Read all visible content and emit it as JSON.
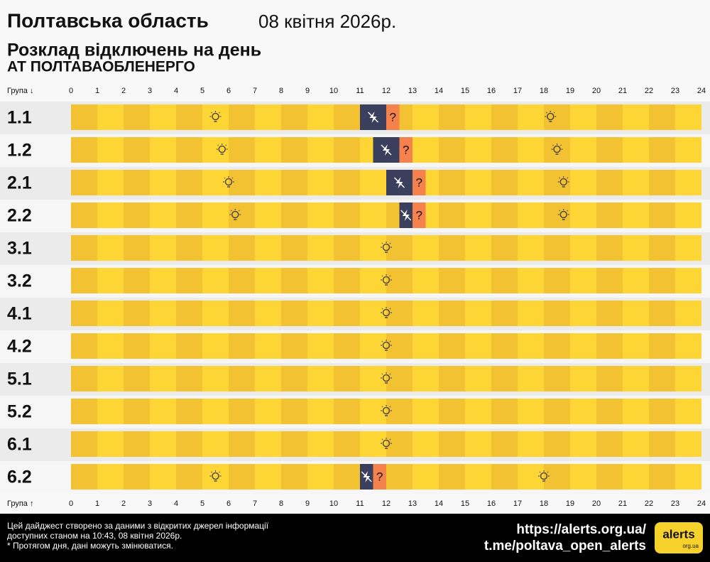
{
  "header": {
    "region": "Полтавська область",
    "date": "08 квітня 2026р.",
    "subtitle": "Розклад відключень на день",
    "company": "АТ ПОЛТАВАОБЛЕНЕРГО"
  },
  "chart_data": {
    "type": "schedule",
    "axis_label_top": "Група ↓",
    "axis_label_bottom": "Група ↑",
    "xlim": [
      0,
      24
    ],
    "xticks": [
      0,
      1,
      2,
      3,
      4,
      5,
      6,
      7,
      8,
      9,
      10,
      11,
      12,
      13,
      14,
      15,
      16,
      17,
      18,
      19,
      20,
      21,
      22,
      23,
      24
    ],
    "maybe_symbol": "?",
    "colors": {
      "on_dark": "#f2c232",
      "on_light": "#fdd535",
      "off": "#3a3f5e",
      "maybe": "#f5814c"
    },
    "groups": [
      {
        "name": "1.1",
        "off": [
          11,
          12
        ],
        "maybe": [
          12,
          12.5
        ]
      },
      {
        "name": "1.2",
        "off": [
          11.5,
          12.5
        ],
        "maybe": [
          12.5,
          13
        ]
      },
      {
        "name": "2.1",
        "off": [
          12,
          13
        ],
        "maybe": [
          13,
          13.5
        ]
      },
      {
        "name": "2.2",
        "off": [
          12.5,
          13
        ],
        "maybe": [
          13,
          13.5
        ]
      },
      {
        "name": "3.1"
      },
      {
        "name": "3.2"
      },
      {
        "name": "4.1"
      },
      {
        "name": "4.2"
      },
      {
        "name": "5.1"
      },
      {
        "name": "5.2"
      },
      {
        "name": "6.1"
      },
      {
        "name": "6.2",
        "off": [
          11,
          11.5
        ],
        "maybe": [
          11.5,
          12
        ]
      }
    ]
  },
  "footer": {
    "note": [
      "Цей дайджест створено за даними з відкритих джерел інформації",
      "доступних станом на 10:43, 08 квітня 2026р.",
      "* Протягом дня, дані можуть змінюватися."
    ],
    "links": [
      "https://alerts.org.ua/",
      "t.me/poltava_open_alerts"
    ],
    "logo": "alerts",
    "logo_sub": "org.ua"
  }
}
